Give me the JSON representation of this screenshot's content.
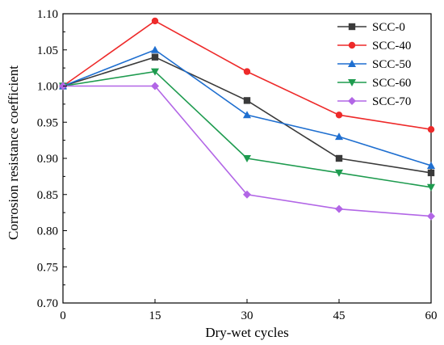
{
  "chart_data": {
    "type": "line",
    "xlabel": "Dry-wet cycles",
    "ylabel": "Corrosion resistance coefficient",
    "x": [
      0,
      15,
      30,
      45,
      60
    ],
    "xlim": [
      0,
      60
    ],
    "ylim": [
      0.7,
      1.1
    ],
    "xticks": [
      "0",
      "15",
      "30",
      "45",
      "60"
    ],
    "yticks": [
      "0.70",
      "0.75",
      "0.80",
      "0.85",
      "0.90",
      "0.95",
      "1.00",
      "1.05",
      "1.10"
    ],
    "grid": false,
    "legend_position": "top-right",
    "series": [
      {
        "name": "SCC-0",
        "color": "#3a3a3a",
        "marker": "square",
        "values": [
          1.0,
          1.04,
          0.98,
          0.9,
          0.88
        ]
      },
      {
        "name": "SCC-40",
        "color": "#ee2a2a",
        "marker": "circle",
        "values": [
          1.0,
          1.09,
          1.02,
          0.96,
          0.94
        ]
      },
      {
        "name": "SCC-50",
        "color": "#1f6fd0",
        "marker": "triangle-up",
        "values": [
          1.0,
          1.05,
          0.96,
          0.93,
          0.89
        ]
      },
      {
        "name": "SCC-60",
        "color": "#1e9b4f",
        "marker": "triangle-down",
        "values": [
          1.0,
          1.02,
          0.9,
          0.88,
          0.86
        ]
      },
      {
        "name": "SCC-70",
        "color": "#b266e6",
        "marker": "diamond",
        "values": [
          1.0,
          1.0,
          0.85,
          0.83,
          0.82
        ]
      }
    ]
  }
}
